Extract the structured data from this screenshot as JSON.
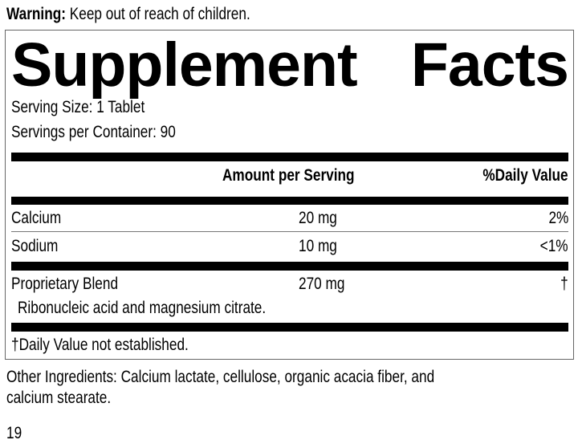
{
  "warning": {
    "label": "Warning:",
    "text": " Keep out of reach of children."
  },
  "title": {
    "word1": "Supplement",
    "word2": "Facts"
  },
  "serving_size": "Serving Size: 1 Tablet",
  "servings_per_container": "Servings per Container: 90",
  "headers": {
    "amount": "Amount per Serving",
    "daily_value": "%Daily Value"
  },
  "rows": [
    {
      "name": "Calcium",
      "amount": "20 mg",
      "dv": "2%"
    },
    {
      "name": "Sodium",
      "amount": "10 mg",
      "dv": "<1%"
    },
    {
      "name": "Proprietary Blend",
      "amount": "270 mg",
      "dv": "†",
      "detail": "Ribonucleic acid and magnesium citrate."
    }
  ],
  "footnote": "†Daily Value not established.",
  "other_ingredients": {
    "line1": "Other Ingredients: Calcium lactate, cellulose, organic acacia fiber, and",
    "line2": "calcium stearate."
  },
  "page_number": "19"
}
